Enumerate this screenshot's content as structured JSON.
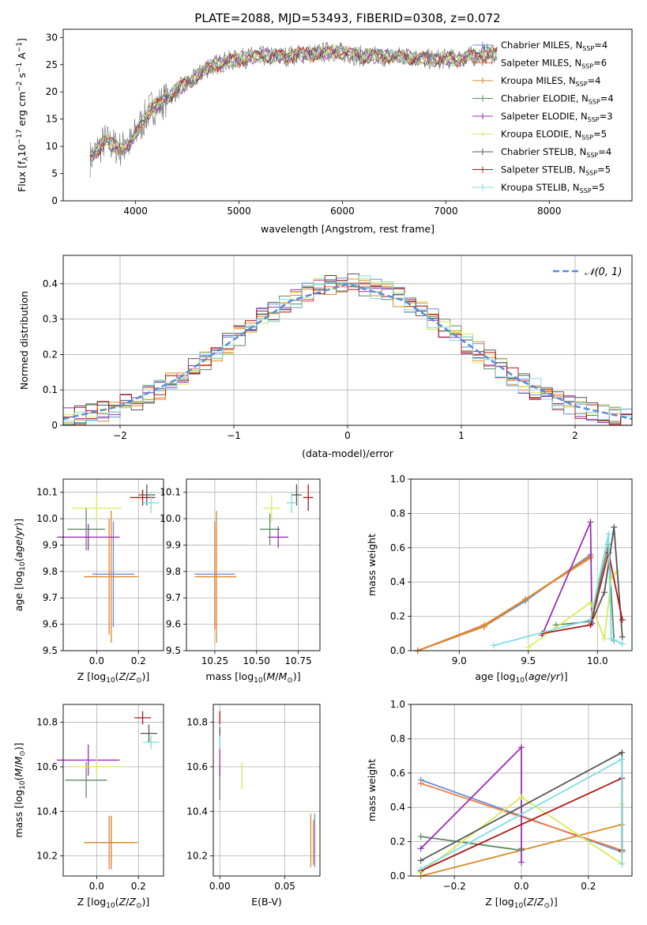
{
  "figure": {
    "title": "PLATE=2088, MJD=53493, FIBERID=0308, z=0.072"
  },
  "models": [
    {
      "name": "Chabrier MILES",
      "nssp": 4,
      "color": "#6a8fd8"
    },
    {
      "name": "Salpeter MILES",
      "nssp": 6,
      "color": "#f07c3e"
    },
    {
      "name": "Kroupa MILES",
      "nssp": 4,
      "color": "#d98a28"
    },
    {
      "name": "Chabrier ELODIE",
      "nssp": 4,
      "color": "#5e8a63"
    },
    {
      "name": "Salpeter ELODIE",
      "nssp": 3,
      "color": "#9830b0"
    },
    {
      "name": "Kroupa ELODIE",
      "nssp": 5,
      "color": "#d6ec58"
    },
    {
      "name": "Chabrier STELIB",
      "nssp": 4,
      "color": "#555555"
    },
    {
      "name": "Salpeter STELIB",
      "nssp": 5,
      "color": "#b01818"
    },
    {
      "name": "Kroupa STELIB",
      "nssp": 5,
      "color": "#7edde2"
    }
  ],
  "chart_data": [
    {
      "id": "spectrum",
      "type": "line",
      "title": "PLATE=2088, MJD=53493, FIBERID=0308, z=0.072",
      "xlabel": "wavelength [Angstrom, rest frame]",
      "ylabel": "Flux [f_λ 10^-17 erg cm^-2 s^-1 A^-1]",
      "xlim": [
        3300,
        8800
      ],
      "ylim": [
        0,
        31.5
      ],
      "xticks": [
        4000,
        5000,
        6000,
        7000,
        8000
      ],
      "yticks": [
        0,
        5,
        10,
        15,
        20,
        25,
        30
      ],
      "x": [
        3550,
        3700,
        3850,
        3950,
        4050,
        4150,
        4250,
        4350,
        4450,
        4550,
        4700,
        4850,
        5000,
        5150,
        5300,
        5450,
        5600,
        5750,
        5900,
        6050,
        6200,
        6350,
        6500,
        6650,
        6800,
        6950,
        7100,
        7250,
        7400,
        7500
      ],
      "y": [
        7.5,
        11,
        9.5,
        10.5,
        14,
        17,
        18,
        19.5,
        21,
        22,
        24.5,
        25.5,
        26,
        26.5,
        26.5,
        26.5,
        27,
        27,
        27.5,
        27,
        26.5,
        26.5,
        26.5,
        26.5,
        26,
        26,
        26,
        26.5,
        27,
        27
      ]
    },
    {
      "id": "residuals",
      "type": "line",
      "xlabel": "(data-model)/error",
      "ylabel": "Normed distribution",
      "xlim": [
        -2.5,
        2.5
      ],
      "ylim": [
        0,
        0.48
      ],
      "xticks": [
        -2,
        -1,
        0,
        1,
        2
      ],
      "yticks": [
        0.0,
        0.1,
        0.2,
        0.3,
        0.4
      ],
      "legend": "$\\mathcal{N}(0,1)$",
      "x": [
        -2.5,
        -2.0,
        -1.5,
        -1.0,
        -0.5,
        0.0,
        0.5,
        1.0,
        1.5,
        2.0,
        2.5
      ],
      "y": [
        0.018,
        0.054,
        0.13,
        0.242,
        0.352,
        0.399,
        0.352,
        0.242,
        0.13,
        0.054,
        0.018
      ]
    },
    {
      "id": "age-vs-Z",
      "type": "scatter",
      "xlabel": "Z [log10(Z/Z⊙)]",
      "ylabel": "age [log10(age/yr)]",
      "xlim": [
        -0.16,
        0.32
      ],
      "ylim": [
        9.5,
        10.15
      ],
      "xticks": [
        "0.0",
        "0.2"
      ],
      "yticks": [
        "9.5",
        "9.6",
        "9.7",
        "9.8",
        "9.9",
        "10.0",
        "10.1"
      ],
      "series": [
        {
          "name": "Chabrier MILES",
          "x": 0.08,
          "y": 9.79,
          "xerr": 0.1,
          "yerr": 0.2
        },
        {
          "name": "Salpeter MILES",
          "x": 0.06,
          "y": 9.78,
          "xerr": 0.12,
          "yerr": 0.22
        },
        {
          "name": "Kroupa MILES",
          "x": 0.07,
          "y": 9.78,
          "xerr": 0.13,
          "yerr": 0.25
        },
        {
          "name": "Chabrier ELODIE",
          "x": -0.05,
          "y": 9.96,
          "xerr": 0.09,
          "yerr": 0.08
        },
        {
          "name": "Salpeter ELODIE",
          "x": -0.04,
          "y": 9.93,
          "xerr": 0.15,
          "yerr": 0.05
        },
        {
          "name": "Kroupa ELODIE",
          "x": 0.0,
          "y": 10.04,
          "xerr": 0.12,
          "yerr": 0.05
        },
        {
          "name": "Chabrier STELIB",
          "x": 0.24,
          "y": 10.09,
          "xerr": 0.04,
          "yerr": 0.04
        },
        {
          "name": "Salpeter STELIB",
          "x": 0.22,
          "y": 10.08,
          "xerr": 0.06,
          "yerr": 0.03
        },
        {
          "name": "Kroupa STELIB",
          "x": 0.26,
          "y": 10.06,
          "xerr": 0.04,
          "yerr": 0.04
        }
      ]
    },
    {
      "id": "age-vs-mass",
      "type": "scatter",
      "xlabel": "mass [log10(M/M⊙)]",
      "ylabel": "",
      "xlim": [
        10.08,
        10.88
      ],
      "ylim": [
        9.5,
        10.15
      ],
      "xticks": [
        "10.25",
        "10.50",
        "10.75"
      ],
      "yticks": [
        "9.5",
        "9.6",
        "9.7",
        "9.8",
        "9.9",
        "10.0",
        "10.1"
      ],
      "series": [
        {
          "name": "Chabrier MILES",
          "x": 10.25,
          "y": 9.79,
          "xerr": 0.12,
          "yerr": 0.2
        },
        {
          "name": "Salpeter MILES",
          "x": 10.25,
          "y": 9.78,
          "xerr": 0.12,
          "yerr": 0.2
        },
        {
          "name": "Kroupa MILES",
          "x": 10.26,
          "y": 9.78,
          "xerr": 0.12,
          "yerr": 0.25
        },
        {
          "name": "Chabrier ELODIE",
          "x": 10.58,
          "y": 9.96,
          "xerr": 0.06,
          "yerr": 0.06
        },
        {
          "name": "Salpeter ELODIE",
          "x": 10.63,
          "y": 9.93,
          "xerr": 0.06,
          "yerr": 0.04
        },
        {
          "name": "Kroupa ELODIE",
          "x": 10.59,
          "y": 10.04,
          "xerr": 0.05,
          "yerr": 0.05
        },
        {
          "name": "Chabrier STELIB",
          "x": 10.74,
          "y": 10.09,
          "xerr": 0.03,
          "yerr": 0.04
        },
        {
          "name": "Salpeter STELIB",
          "x": 10.81,
          "y": 10.08,
          "xerr": 0.03,
          "yerr": 0.05
        },
        {
          "name": "Kroupa STELIB",
          "x": 10.71,
          "y": 10.06,
          "xerr": 0.03,
          "yerr": 0.04
        }
      ]
    },
    {
      "id": "massweight-vs-age",
      "type": "line",
      "xlabel": "age [log10(age/yr)]",
      "ylabel": "mass weight",
      "xlim": [
        8.65,
        10.25
      ],
      "ylim": [
        0,
        1
      ],
      "xticks": [
        "9.0",
        "9.5",
        "10.0"
      ],
      "yticks": [
        "0.0",
        "0.2",
        "0.4",
        "0.6",
        "0.8",
        "1.0"
      ],
      "series": [
        {
          "name": "Chabrier MILES",
          "x": [
            8.7,
            9.18,
            9.48,
            9.95
          ],
          "y": [
            0.0,
            0.14,
            0.29,
            0.56
          ]
        },
        {
          "name": "Salpeter MILES",
          "x": [
            8.7,
            9.18,
            9.48,
            9.95
          ],
          "y": [
            0.0,
            0.15,
            0.3,
            0.54
          ]
        },
        {
          "name": "Kroupa MILES",
          "x": [
            8.7,
            9.18,
            9.48,
            9.95
          ],
          "y": [
            0.0,
            0.14,
            0.3,
            0.55
          ]
        },
        {
          "name": "Chabrier ELODIE",
          "x": [
            9.7,
            9.95,
            10.08,
            10.12
          ],
          "y": [
            0.15,
            0.17,
            0.62,
            0.06
          ]
        },
        {
          "name": "Salpeter ELODIE",
          "x": [
            9.6,
            9.95,
            9.96
          ],
          "y": [
            0.09,
            0.75,
            0.16
          ]
        },
        {
          "name": "Kroupa ELODIE",
          "x": [
            9.5,
            9.95,
            10.05,
            10.1,
            10.14
          ],
          "y": [
            0.02,
            0.28,
            0.07,
            0.42,
            0.46
          ]
        },
        {
          "name": "Chabrier STELIB",
          "x": [
            9.95,
            10.05,
            10.12,
            10.18
          ],
          "y": [
            0.15,
            0.34,
            0.72,
            0.08
          ]
        },
        {
          "name": "Salpeter STELIB",
          "x": [
            9.6,
            9.95,
            10.08,
            10.18
          ],
          "y": [
            0.1,
            0.15,
            0.57,
            0.18
          ]
        },
        {
          "name": "Kroupa STELIB",
          "x": [
            9.25,
            9.95,
            10.08,
            10.1,
            10.18
          ],
          "y": [
            0.03,
            0.18,
            0.68,
            0.07,
            0.04
          ]
        }
      ]
    },
    {
      "id": "mass-vs-Z",
      "type": "scatter",
      "xlabel": "Z [log10(Z/Z⊙)]",
      "ylabel": "mass [log10(M/M⊙)]",
      "xlim": [
        -0.16,
        0.32
      ],
      "ylim": [
        10.11,
        10.88
      ],
      "xticks": [
        "0.0",
        "0.2"
      ],
      "yticks": [
        "10.2",
        "10.4",
        "10.6",
        "10.8"
      ],
      "series": [
        {
          "name": "Chabrier MILES",
          "x": 0.07,
          "y": 10.26,
          "xerr": 0.1,
          "yerr": 0.12
        },
        {
          "name": "Salpeter MILES",
          "x": 0.06,
          "y": 10.26,
          "xerr": 0.12,
          "yerr": 0.12
        },
        {
          "name": "Kroupa MILES",
          "x": 0.07,
          "y": 10.26,
          "xerr": 0.13,
          "yerr": 0.12
        },
        {
          "name": "Chabrier ELODIE",
          "x": -0.05,
          "y": 10.54,
          "xerr": 0.1,
          "yerr": 0.08
        },
        {
          "name": "Salpeter ELODIE",
          "x": -0.04,
          "y": 10.63,
          "xerr": 0.15,
          "yerr": 0.07
        },
        {
          "name": "Kroupa ELODIE",
          "x": 0.0,
          "y": 10.6,
          "xerr": 0.13,
          "yerr": 0.04
        },
        {
          "name": "Chabrier STELIB",
          "x": 0.25,
          "y": 10.75,
          "xerr": 0.04,
          "yerr": 0.04
        },
        {
          "name": "Salpeter STELIB",
          "x": 0.22,
          "y": 10.82,
          "xerr": 0.04,
          "yerr": 0.03
        },
        {
          "name": "Kroupa STELIB",
          "x": 0.26,
          "y": 10.71,
          "xerr": 0.04,
          "yerr": 0.03
        }
      ]
    },
    {
      "id": "mass-vs-EBV",
      "type": "scatter",
      "xlabel": "E(B-V)",
      "ylabel": "",
      "xlim": [
        -0.005,
        0.077
      ],
      "ylim": [
        10.11,
        10.88
      ],
      "xticks": [
        "0.00",
        "0.05"
      ],
      "yticks": [
        "10.2",
        "10.4",
        "10.6",
        "10.8"
      ],
      "series": [
        {
          "name": "Chabrier MILES",
          "x": 0.073,
          "y": 10.27,
          "xerr": 0,
          "yerr": 0.12
        },
        {
          "name": "Salpeter MILES",
          "x": 0.072,
          "y": 10.26,
          "xerr": 0,
          "yerr": 0.1
        },
        {
          "name": "Kroupa MILES",
          "x": 0.07,
          "y": 10.27,
          "xerr": 0,
          "yerr": 0.12
        },
        {
          "name": "Chabrier ELODIE",
          "x": 0.0,
          "y": 10.52,
          "xerr": 0,
          "yerr": 0.07
        },
        {
          "name": "Salpeter ELODIE",
          "x": 0.0,
          "y": 10.63,
          "xerr": 0,
          "yerr": 0.07
        },
        {
          "name": "Kroupa ELODIE",
          "x": 0.017,
          "y": 10.56,
          "xerr": 0,
          "yerr": 0.06
        },
        {
          "name": "Chabrier STELIB",
          "x": 0.0,
          "y": 10.74,
          "xerr": 0,
          "yerr": 0.04
        },
        {
          "name": "Salpeter STELIB",
          "x": 0.0,
          "y": 10.82,
          "xerr": 0,
          "yerr": 0.03
        },
        {
          "name": "Kroupa STELIB",
          "x": 0.0,
          "y": 10.71,
          "xerr": 0,
          "yerr": 0.03
        }
      ]
    },
    {
      "id": "massweight-vs-Z",
      "type": "line",
      "xlabel": "Z [log10(Z/Z⊙)]",
      "ylabel": "mass weight",
      "xlim": [
        -0.33,
        0.33
      ],
      "ylim": [
        0,
        1
      ],
      "xticks": [
        "-0.2",
        "0.0",
        "0.2"
      ],
      "yticks": [
        "0.0",
        "0.2",
        "0.4",
        "0.6",
        "0.8",
        "1.0"
      ],
      "series": [
        {
          "name": "Chabrier MILES",
          "x": [
            -0.3,
            0.3
          ],
          "y": [
            0.56,
            0.14
          ]
        },
        {
          "name": "Salpeter MILES",
          "x": [
            -0.3,
            0.3
          ],
          "y": [
            0.54,
            0.15
          ]
        },
        {
          "name": "Kroupa MILES",
          "x": [
            -0.3,
            0.3,
            0.3
          ],
          "y": [
            0.0,
            0.3,
            0.14
          ]
        },
        {
          "name": "Chabrier ELODIE",
          "x": [
            -0.3,
            0.0,
            0.0
          ],
          "y": [
            0.23,
            0.15,
            0.16
          ]
        },
        {
          "name": "Salpeter ELODIE",
          "x": [
            -0.3,
            0.0,
            0.0
          ],
          "y": [
            0.16,
            0.75,
            0.08
          ]
        },
        {
          "name": "Kroupa ELODIE",
          "x": [
            -0.3,
            0.0,
            0.3,
            0.3
          ],
          "y": [
            0.02,
            0.46,
            0.07,
            0.42
          ]
        },
        {
          "name": "Chabrier STELIB",
          "x": [
            -0.3,
            0.3,
            0.3
          ],
          "y": [
            0.09,
            0.72,
            0.15
          ]
        },
        {
          "name": "Salpeter STELIB",
          "x": [
            -0.3,
            0.3,
            0.3
          ],
          "y": [
            0.03,
            0.57,
            0.15
          ]
        },
        {
          "name": "Kroupa STELIB",
          "x": [
            -0.3,
            0.3,
            0.3
          ],
          "y": [
            0.04,
            0.68,
            0.07
          ]
        }
      ]
    }
  ]
}
